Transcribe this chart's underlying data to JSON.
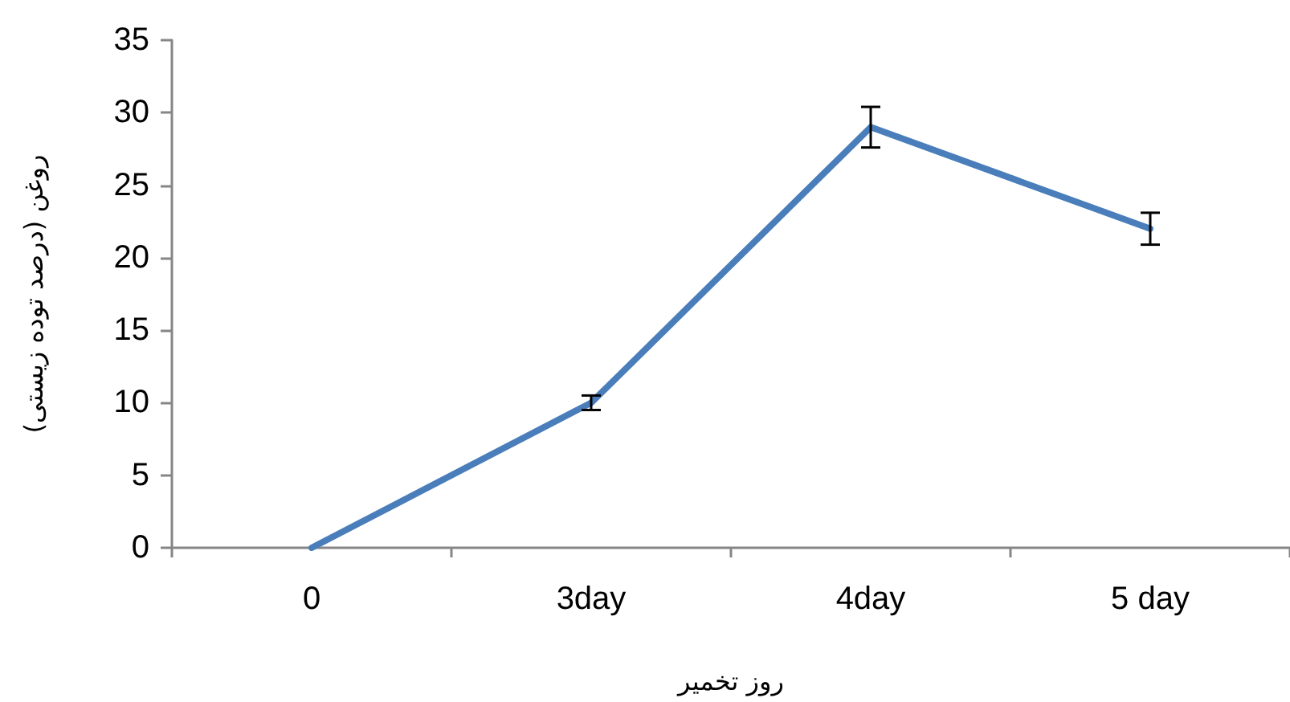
{
  "chart_data": {
    "type": "line",
    "xlabel": "روز تخمیر",
    "ylabel": "روغن (درصد توده زیستی)",
    "categories": [
      "0",
      "3day",
      "4day",
      "5 day"
    ],
    "values": [
      0,
      10,
      29,
      22
    ],
    "color": "#4a7ebb",
    "errors": [
      null,
      0.5,
      1.4,
      1.1
    ],
    "ylim": [
      0,
      35
    ],
    "yticks": [
      0,
      5,
      10,
      15,
      20,
      25,
      30,
      35
    ],
    "grid": false,
    "marker": "none",
    "line_style": "solid"
  }
}
